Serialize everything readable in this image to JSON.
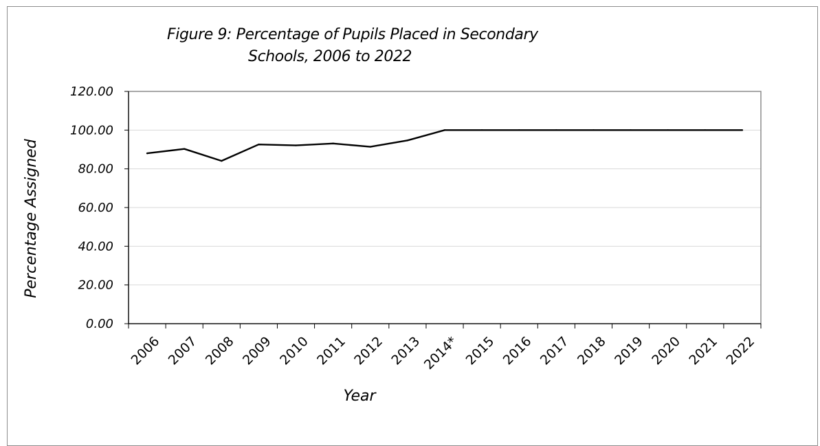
{
  "chart_data": {
    "type": "line",
    "title_line1": "Figure 9: Percentage of Pupils Placed in Secondary",
    "title_line2": "Schools, 2006 to 2022",
    "xlabel": "Year",
    "ylabel": "Percentage Assigned",
    "categories": [
      "2006",
      "2007",
      "2008",
      "2009",
      "2010",
      "2011",
      "2012",
      "2013",
      "2014*",
      "2015",
      "2016",
      "2017",
      "2018",
      "2019",
      "2020",
      "2021",
      "2022"
    ],
    "values": [
      88.0,
      90.3,
      84.1,
      92.6,
      92.1,
      93.1,
      91.4,
      94.7,
      100.0,
      100.0,
      100.0,
      100.0,
      100.0,
      100.0,
      100.0,
      100.0,
      100.0
    ],
    "ylim": [
      0,
      120
    ],
    "yticks": [
      "0.00",
      "20.00",
      "40.00",
      "60.00",
      "80.00",
      "100.00",
      "120.00"
    ],
    "grid": true,
    "line_color": "#000000",
    "grid_color": "#d9d9d9"
  }
}
